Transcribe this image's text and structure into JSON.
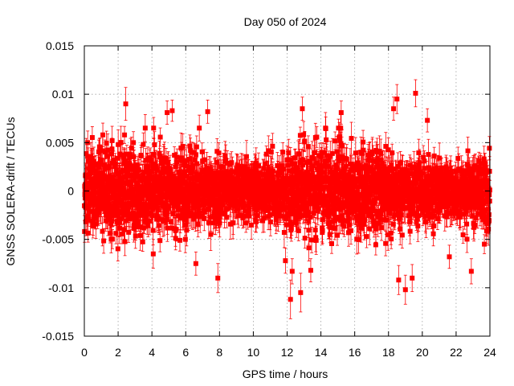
{
  "chart_data": {
    "type": "scatter",
    "title": "Day 050 of 2024",
    "xlabel": "GPS time / hours",
    "ylabel": "GNSS SOLERA-drift / TECUs",
    "xlim": [
      0,
      24
    ],
    "ylim": [
      -0.015,
      0.015
    ],
    "x_ticks": [
      0,
      2,
      4,
      6,
      8,
      10,
      12,
      14,
      16,
      18,
      20,
      22,
      24
    ],
    "y_ticks": [
      -0.015,
      -0.01,
      -0.005,
      0,
      0.005,
      0.01,
      0.015
    ],
    "x_tick_labels": [
      "0",
      "2",
      "4",
      "6",
      "8",
      "10",
      "12",
      "14",
      "16",
      "18",
      "20",
      "22",
      "24"
    ],
    "y_tick_labels": [
      "-0.015",
      "-0.01",
      "-0.005",
      "0",
      "0.005",
      "0.01",
      "0.015"
    ],
    "grid": true,
    "series": [
      {
        "name": "SOLERA-drift",
        "color": "#ff0000",
        "marker": "square",
        "error_bars": true,
        "approx_point_count": 2880,
        "typical_spread": 0.0025,
        "typical_error": 0.0012,
        "outliers": [
          {
            "x": 2.45,
            "y": 0.009,
            "err": 0.0017
          },
          {
            "x": 4.9,
            "y": 0.0081,
            "err": 0.0012
          },
          {
            "x": 5.2,
            "y": 0.0083,
            "err": 0.0011
          },
          {
            "x": 7.3,
            "y": 0.0082,
            "err": 0.0012
          },
          {
            "x": 12.2,
            "y": -0.0112,
            "err": 0.002
          },
          {
            "x": 12.8,
            "y": -0.0105,
            "err": 0.002
          },
          {
            "x": 12.3,
            "y": -0.0083,
            "err": 0.0013
          },
          {
            "x": 12.9,
            "y": 0.0085,
            "err": 0.0012
          },
          {
            "x": 7.9,
            "y": -0.009,
            "err": 0.0015
          },
          {
            "x": 6.6,
            "y": -0.0075,
            "err": 0.0012
          },
          {
            "x": 18.5,
            "y": 0.0095,
            "err": 0.0015
          },
          {
            "x": 18.3,
            "y": 0.0085,
            "err": 0.0012
          },
          {
            "x": 18.6,
            "y": -0.0092,
            "err": 0.0015
          },
          {
            "x": 19.0,
            "y": -0.0102,
            "err": 0.0015
          },
          {
            "x": 19.4,
            "y": -0.009,
            "err": 0.0014
          },
          {
            "x": 19.6,
            "y": 0.0101,
            "err": 0.0014
          },
          {
            "x": 15.2,
            "y": 0.0081,
            "err": 0.0012
          },
          {
            "x": 22.9,
            "y": -0.0083,
            "err": 0.0013
          },
          {
            "x": 20.3,
            "y": 0.0073,
            "err": 0.0012
          },
          {
            "x": 4.1,
            "y": 0.0065,
            "err": 0.0011
          },
          {
            "x": 0.2,
            "y": 0.005,
            "err": 0.0012
          },
          {
            "x": 11.9,
            "y": -0.0072,
            "err": 0.0013
          },
          {
            "x": 13.4,
            "y": -0.0082,
            "err": 0.0012
          },
          {
            "x": 21.6,
            "y": -0.0068,
            "err": 0.0012
          }
        ]
      }
    ]
  }
}
